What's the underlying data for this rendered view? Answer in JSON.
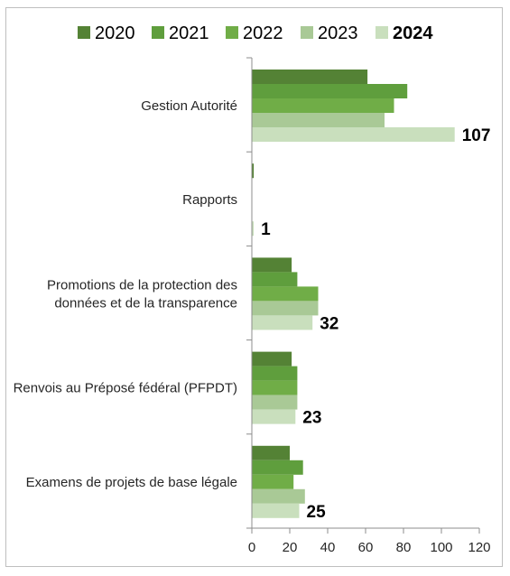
{
  "chart_data": {
    "type": "bar",
    "orientation": "horizontal",
    "title": "",
    "xlabel": "",
    "ylabel": "",
    "categories": [
      [
        "Gestion Autorité"
      ],
      [
        "Rapports"
      ],
      [
        "Promotions de la protection des",
        "données et de la transparence"
      ],
      [
        "Renvois au Préposé fédéral (PFPDT)"
      ],
      [
        "Examens de projets de base légale"
      ]
    ],
    "series": [
      {
        "name": "2020",
        "color": "#548235",
        "values": [
          61,
          1,
          21,
          21,
          20
        ]
      },
      {
        "name": "2021",
        "color": "#5f9e3d",
        "values": [
          82,
          0,
          24,
          24,
          27
        ]
      },
      {
        "name": "2022",
        "color": "#70ad47",
        "values": [
          75,
          0,
          35,
          24,
          22
        ]
      },
      {
        "name": "2023",
        "color": "#a9c996",
        "values": [
          70,
          0,
          35,
          24,
          28
        ]
      },
      {
        "name": "2024",
        "color": "#c9dfbd",
        "bold": true,
        "values": [
          107,
          1,
          32,
          23,
          25
        ]
      }
    ],
    "data_labels": {
      "series": "2024",
      "values": [
        "107",
        "1",
        "32",
        "23",
        "25"
      ]
    },
    "xlim": [
      0,
      120
    ],
    "xticks": [
      0,
      20,
      40,
      60,
      80,
      100,
      120
    ],
    "grid": false,
    "legend": "top"
  }
}
